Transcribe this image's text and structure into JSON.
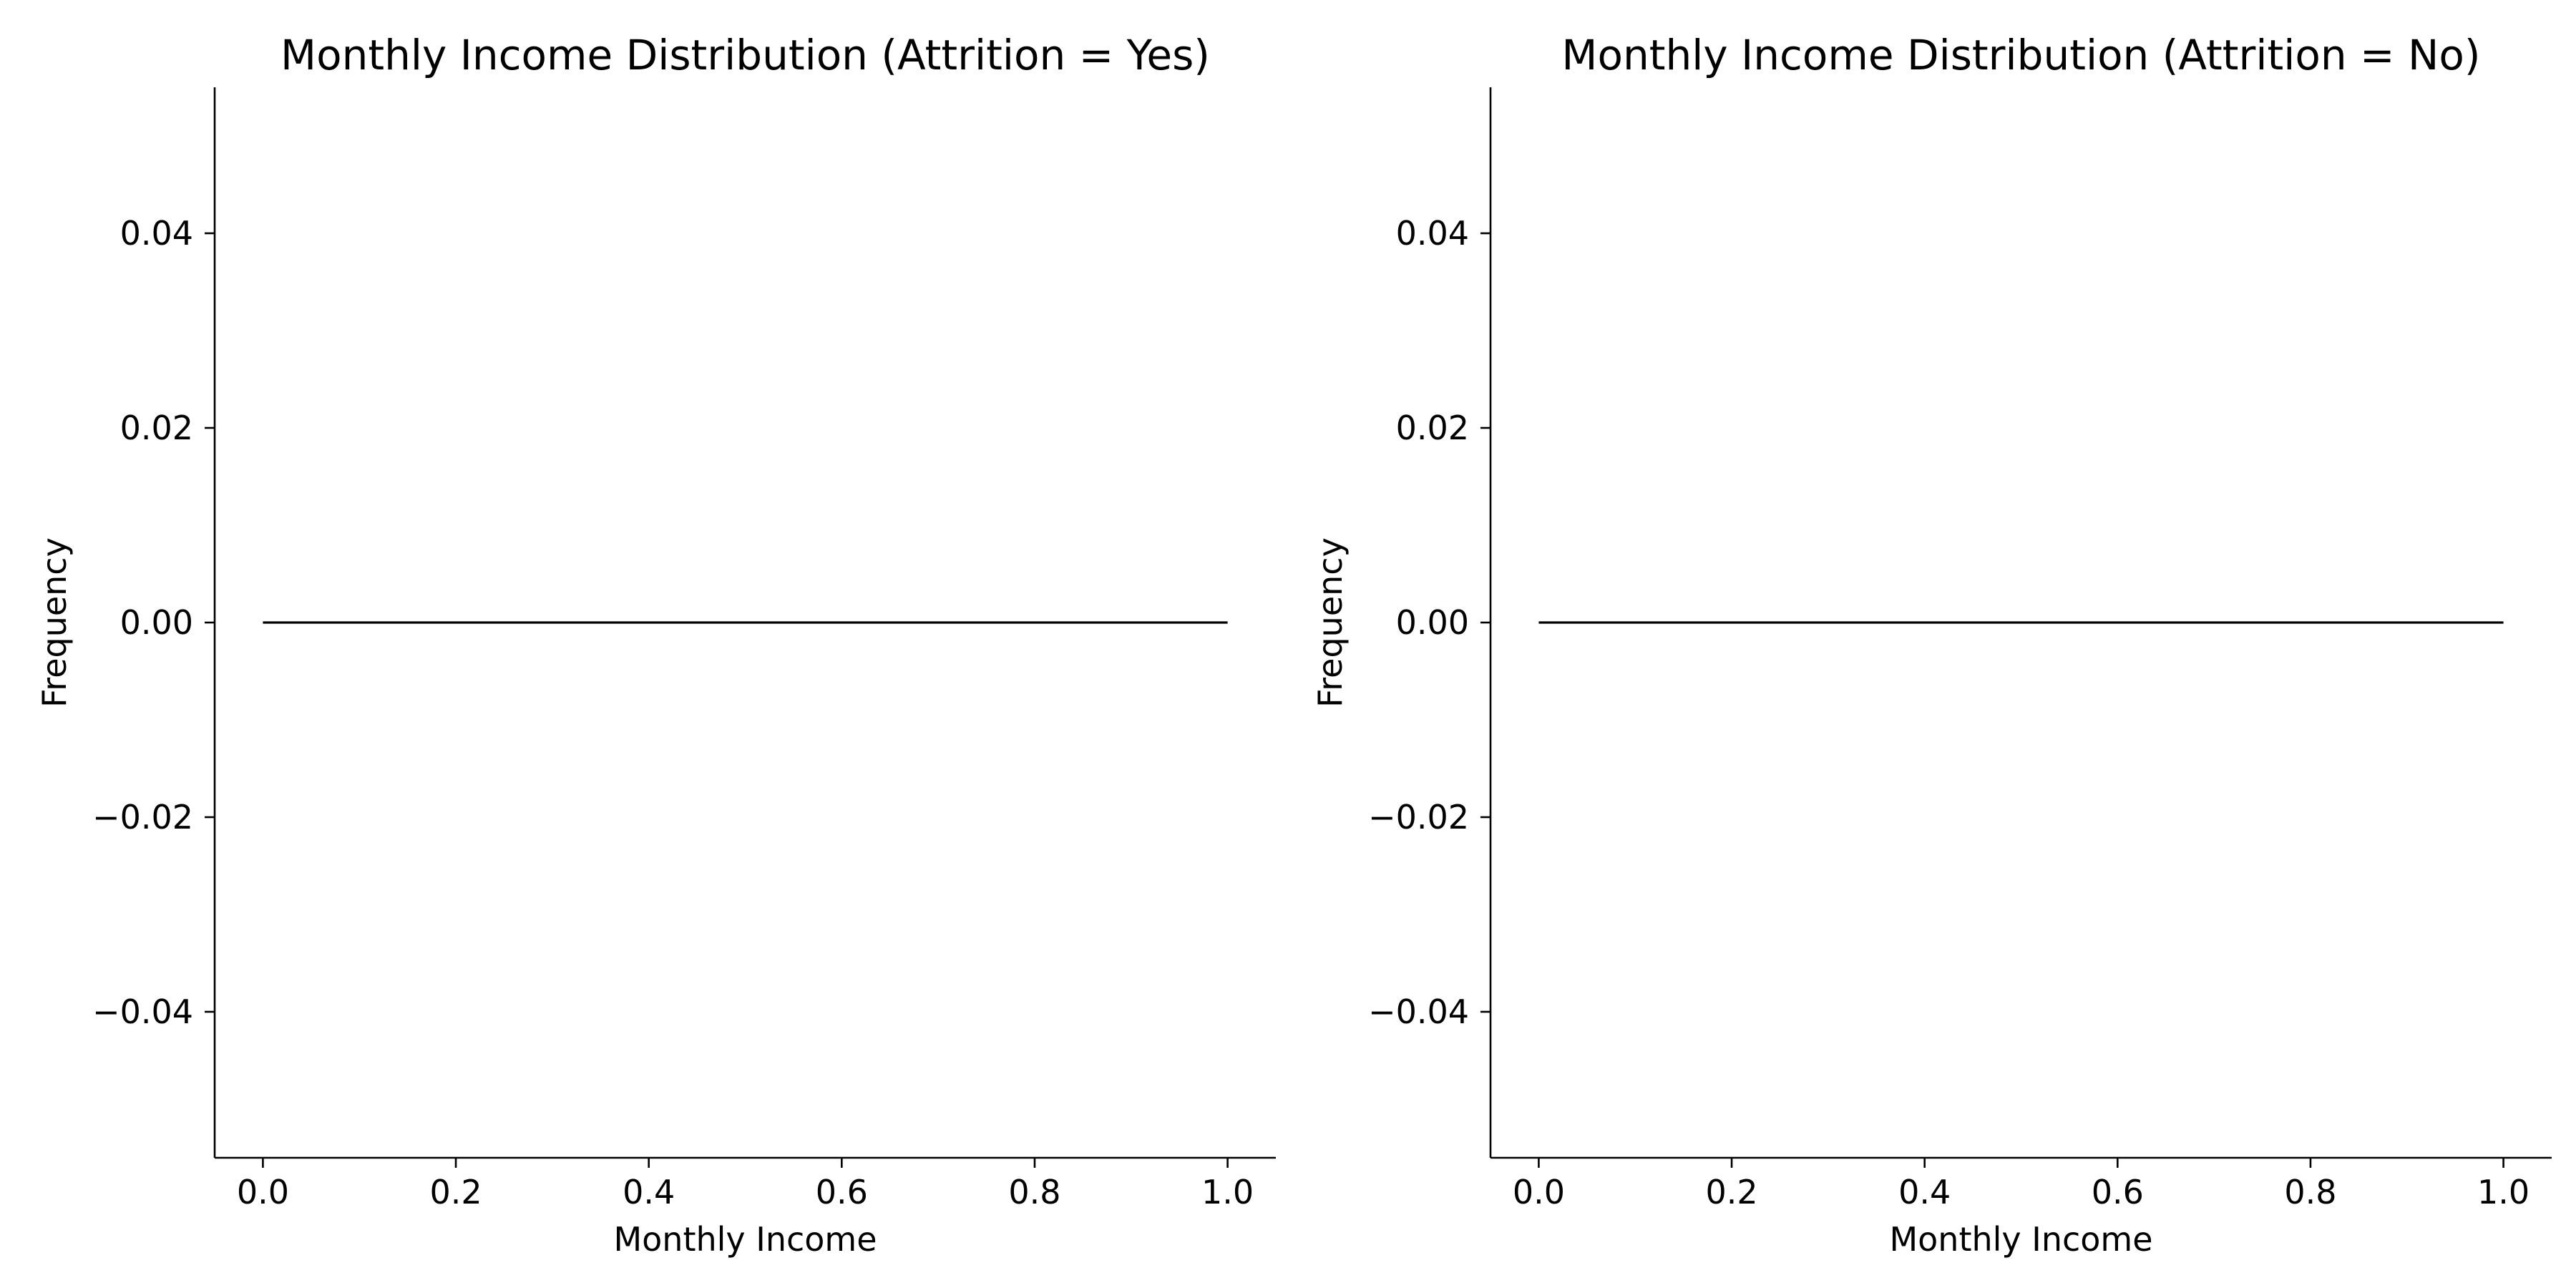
{
  "chart_data": [
    {
      "type": "line",
      "title": "Monthly Income Distribution (Attrition = Yes)",
      "xlabel": "Monthly Income",
      "ylabel": "Frequency",
      "xlim": [
        -0.05,
        1.05
      ],
      "ylim": [
        -0.055,
        0.055
      ],
      "xticks": [
        0.0,
        0.2,
        0.4,
        0.6,
        0.8,
        1.0
      ],
      "xtick_labels": [
        "0.0",
        "0.2",
        "0.4",
        "0.6",
        "0.8",
        "1.0"
      ],
      "yticks": [
        0.04,
        0.02,
        0.0,
        -0.02,
        -0.04
      ],
      "ytick_labels": [
        "0.04",
        "0.02",
        "0.00",
        "−0.02",
        "−0.04"
      ],
      "grid": false,
      "series": [
        {
          "x": [
            0.0,
            1.0
          ],
          "y": [
            0.0,
            0.0
          ],
          "color": "#000000"
        }
      ]
    },
    {
      "type": "line",
      "title": "Monthly Income Distribution (Attrition = No)",
      "xlabel": "Monthly Income",
      "ylabel": "Frequency",
      "xlim": [
        -0.05,
        1.05
      ],
      "ylim": [
        -0.055,
        0.055
      ],
      "xticks": [
        0.0,
        0.2,
        0.4,
        0.6,
        0.8,
        1.0
      ],
      "xtick_labels": [
        "0.0",
        "0.2",
        "0.4",
        "0.6",
        "0.8",
        "1.0"
      ],
      "yticks": [
        0.04,
        0.02,
        0.0,
        -0.02,
        -0.04
      ],
      "ytick_labels": [
        "0.04",
        "0.02",
        "0.00",
        "−0.02",
        "−0.04"
      ],
      "grid": false,
      "series": [
        {
          "x": [
            0.0,
            1.0
          ],
          "y": [
            0.0,
            0.0
          ],
          "color": "#000000"
        }
      ]
    }
  ]
}
